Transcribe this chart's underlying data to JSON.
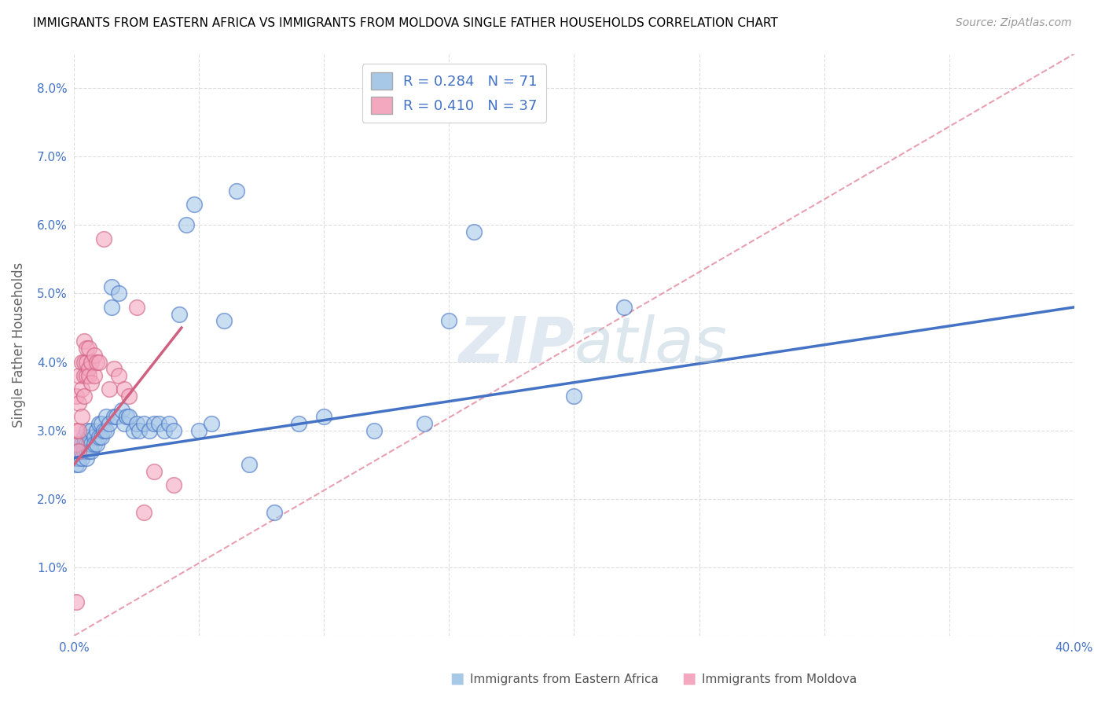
{
  "title": "IMMIGRANTS FROM EASTERN AFRICA VS IMMIGRANTS FROM MOLDOVA SINGLE FATHER HOUSEHOLDS CORRELATION CHART",
  "source": "Source: ZipAtlas.com",
  "ylabel": "Single Father Households",
  "legend_label1": "Immigrants from Eastern Africa",
  "legend_label2": "Immigrants from Moldova",
  "r_blue": 0.284,
  "n_blue": 71,
  "r_pink": 0.41,
  "n_pink": 37,
  "watermark_zip": "ZIP",
  "watermark_atlas": "atlas",
  "xlim": [
    0.0,
    0.4
  ],
  "ylim": [
    0.0,
    0.085
  ],
  "xticks": [
    0.0,
    0.05,
    0.1,
    0.15,
    0.2,
    0.25,
    0.3,
    0.35,
    0.4
  ],
  "yticks": [
    0.0,
    0.01,
    0.02,
    0.03,
    0.04,
    0.05,
    0.06,
    0.07,
    0.08
  ],
  "ytick_labels": [
    "",
    "1.0%",
    "2.0%",
    "3.0%",
    "4.0%",
    "5.0%",
    "6.0%",
    "7.0%",
    "8.0%"
  ],
  "xtick_labels": [
    "0.0%",
    "",
    "",
    "",
    "",
    "",
    "",
    "",
    "40.0%"
  ],
  "color_blue": "#a8c8e8",
  "color_pink": "#f4a8c0",
  "line_blue": "#4472c4",
  "line_pink": "#d06080",
  "line_dashed_color": "#e8a0b0",
  "blue_line_x0": 0.0,
  "blue_line_y0": 0.026,
  "blue_line_x1": 0.4,
  "blue_line_y1": 0.048,
  "pink_line_x0": 0.0,
  "pink_line_y0": 0.025,
  "pink_line_x1": 0.043,
  "pink_line_y1": 0.045,
  "blue_scatter_x": [
    0.001,
    0.001,
    0.001,
    0.002,
    0.002,
    0.002,
    0.002,
    0.003,
    0.003,
    0.003,
    0.004,
    0.004,
    0.004,
    0.005,
    0.005,
    0.005,
    0.005,
    0.006,
    0.006,
    0.006,
    0.007,
    0.007,
    0.007,
    0.008,
    0.008,
    0.009,
    0.009,
    0.01,
    0.01,
    0.011,
    0.011,
    0.012,
    0.013,
    0.013,
    0.014,
    0.015,
    0.015,
    0.016,
    0.017,
    0.018,
    0.019,
    0.02,
    0.021,
    0.022,
    0.024,
    0.025,
    0.026,
    0.028,
    0.03,
    0.032,
    0.034,
    0.036,
    0.038,
    0.04,
    0.042,
    0.045,
    0.048,
    0.05,
    0.055,
    0.06,
    0.065,
    0.07,
    0.08,
    0.09,
    0.1,
    0.12,
    0.14,
    0.15,
    0.16,
    0.2,
    0.22
  ],
  "blue_scatter_y": [
    0.027,
    0.025,
    0.026,
    0.028,
    0.026,
    0.025,
    0.027,
    0.028,
    0.026,
    0.027,
    0.028,
    0.027,
    0.029,
    0.027,
    0.028,
    0.026,
    0.03,
    0.028,
    0.027,
    0.029,
    0.028,
    0.027,
    0.03,
    0.029,
    0.028,
    0.028,
    0.03,
    0.029,
    0.031,
    0.029,
    0.031,
    0.03,
    0.03,
    0.032,
    0.031,
    0.048,
    0.051,
    0.032,
    0.032,
    0.05,
    0.033,
    0.031,
    0.032,
    0.032,
    0.03,
    0.031,
    0.03,
    0.031,
    0.03,
    0.031,
    0.031,
    0.03,
    0.031,
    0.03,
    0.047,
    0.06,
    0.063,
    0.03,
    0.031,
    0.046,
    0.065,
    0.025,
    0.018,
    0.031,
    0.032,
    0.03,
    0.031,
    0.046,
    0.059,
    0.035,
    0.048
  ],
  "pink_scatter_x": [
    0.001,
    0.001,
    0.001,
    0.001,
    0.002,
    0.002,
    0.002,
    0.002,
    0.003,
    0.003,
    0.003,
    0.004,
    0.004,
    0.004,
    0.004,
    0.005,
    0.005,
    0.005,
    0.006,
    0.006,
    0.006,
    0.007,
    0.007,
    0.008,
    0.008,
    0.009,
    0.01,
    0.012,
    0.014,
    0.016,
    0.018,
    0.02,
    0.022,
    0.025,
    0.028,
    0.032,
    0.04
  ],
  "pink_scatter_y": [
    0.005,
    0.028,
    0.03,
    0.035,
    0.027,
    0.03,
    0.034,
    0.038,
    0.032,
    0.036,
    0.04,
    0.035,
    0.038,
    0.04,
    0.043,
    0.038,
    0.04,
    0.042,
    0.039,
    0.038,
    0.042,
    0.037,
    0.04,
    0.038,
    0.041,
    0.04,
    0.04,
    0.058,
    0.036,
    0.039,
    0.038,
    0.036,
    0.035,
    0.048,
    0.018,
    0.024,
    0.022
  ]
}
